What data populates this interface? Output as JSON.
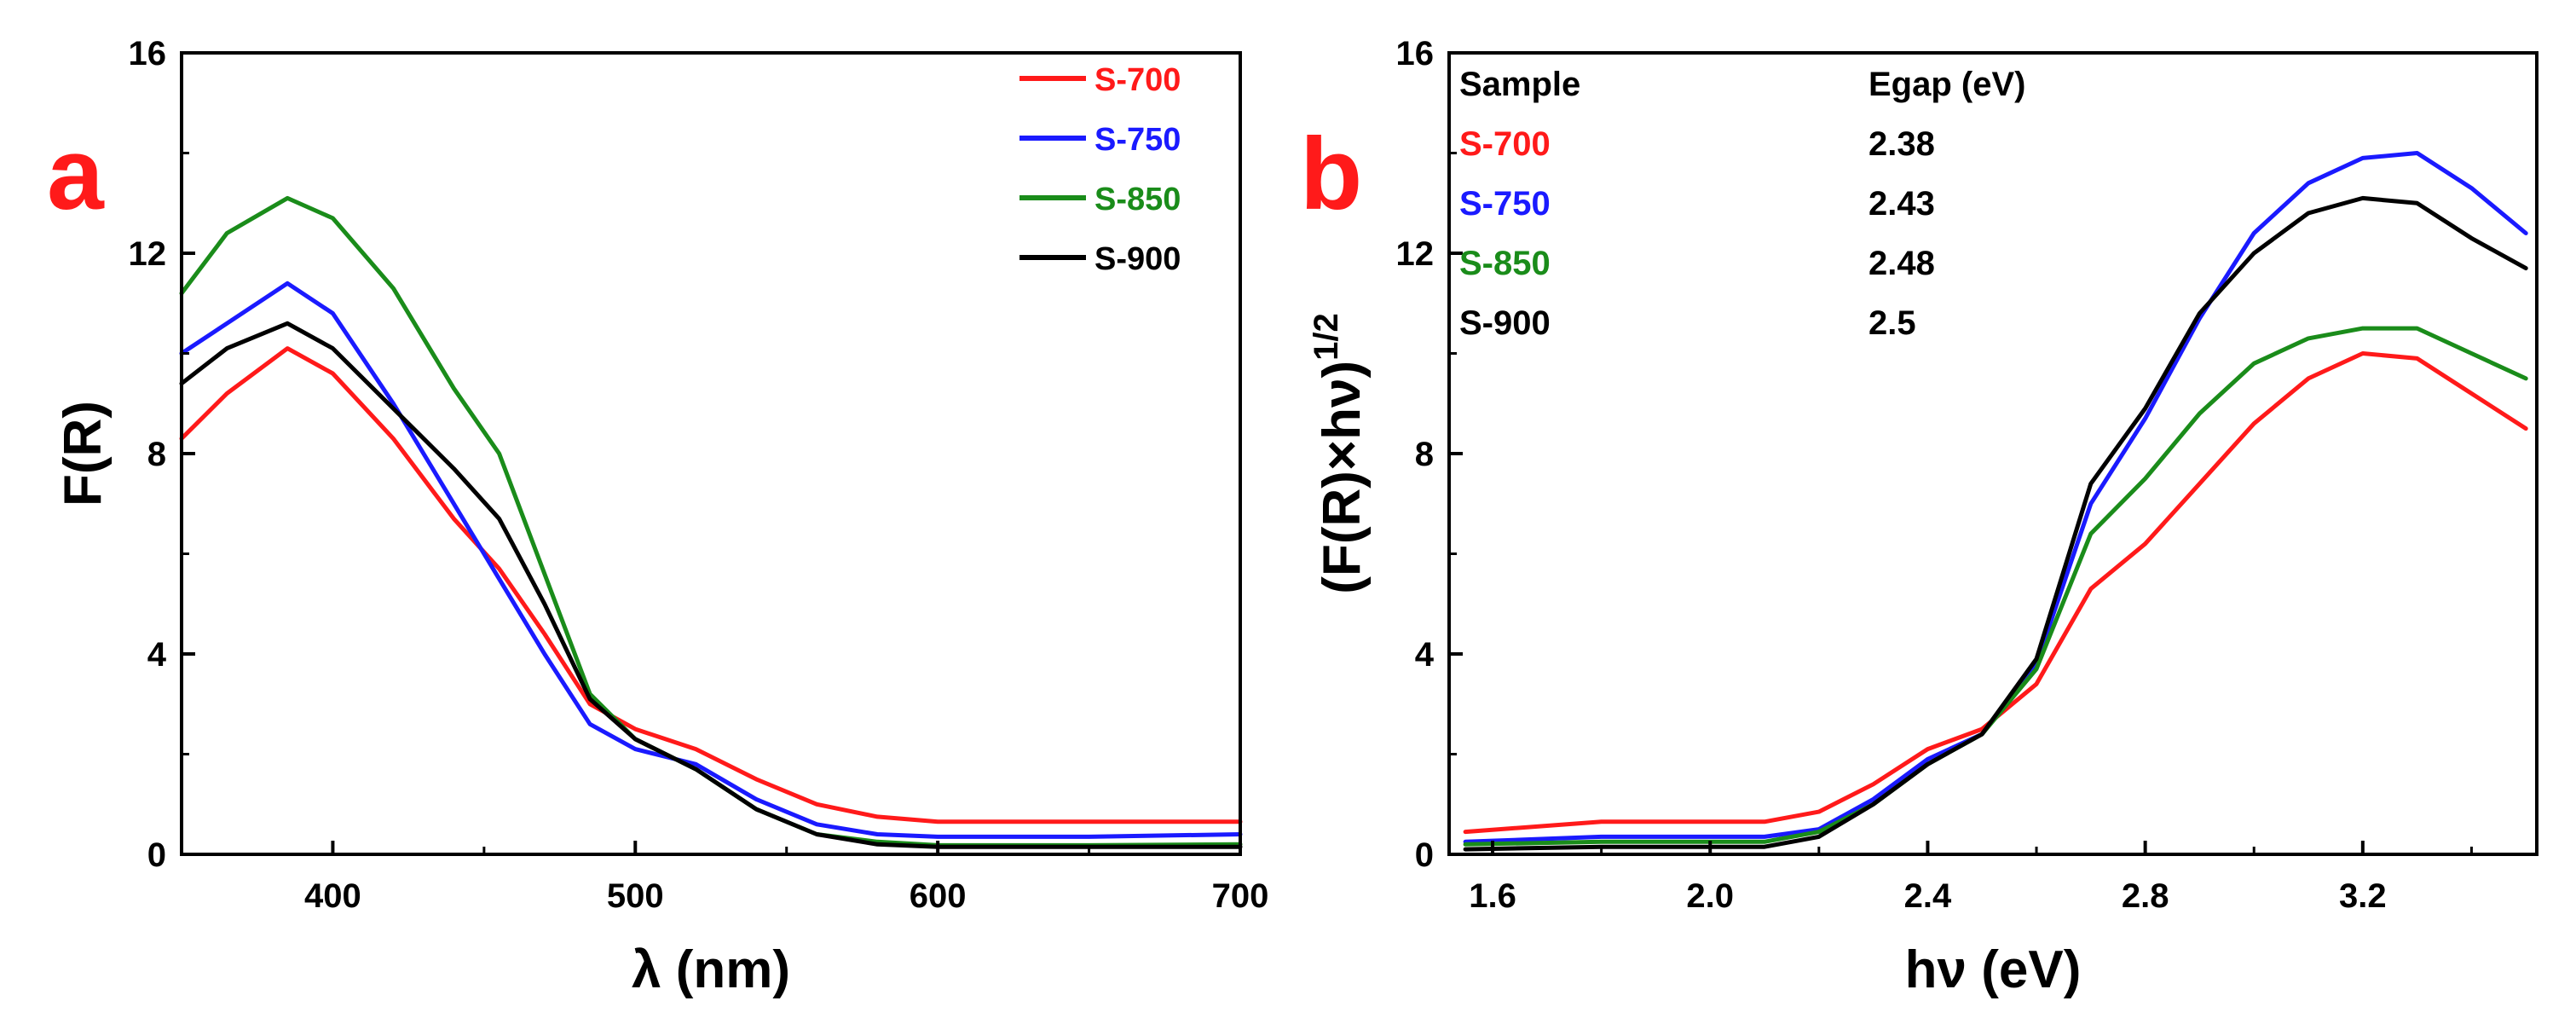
{
  "colors": {
    "S-700": "#ff1a1a",
    "S-750": "#1a1aff",
    "S-850": "#1a8c1a",
    "S-900": "#000000",
    "panel_letter": "#ff1a1a"
  },
  "chart_data": [
    {
      "type": "line",
      "panel_label": "a",
      "title": "",
      "xlabel": "λ (nm)",
      "ylabel": "F(R)",
      "xlim": [
        350,
        700
      ],
      "ylim": [
        0,
        16
      ],
      "xticks": [
        400,
        500,
        600,
        700
      ],
      "yticks": [
        0,
        4,
        8,
        12,
        16
      ],
      "grid": false,
      "legend": {
        "placement": "top-right",
        "entries": [
          "S-700",
          "S-750",
          "S-850",
          "S-900"
        ]
      },
      "series": [
        {
          "name": "S-700",
          "color_key": "S-700",
          "x": [
            350,
            365,
            385,
            400,
            420,
            440,
            455,
            470,
            485,
            500,
            520,
            540,
            560,
            580,
            600,
            650,
            700
          ],
          "y": [
            8.3,
            9.2,
            10.1,
            9.6,
            8.3,
            6.7,
            5.7,
            4.4,
            3.0,
            2.5,
            2.1,
            1.5,
            1.0,
            0.75,
            0.65,
            0.65,
            0.65
          ]
        },
        {
          "name": "S-750",
          "color_key": "S-750",
          "x": [
            350,
            365,
            385,
            400,
            420,
            440,
            455,
            470,
            485,
            500,
            520,
            540,
            560,
            580,
            600,
            650,
            700
          ],
          "y": [
            10.0,
            10.6,
            11.4,
            10.8,
            9.0,
            7.0,
            5.5,
            4.0,
            2.6,
            2.1,
            1.8,
            1.1,
            0.6,
            0.4,
            0.35,
            0.35,
            0.4
          ]
        },
        {
          "name": "S-850",
          "color_key": "S-850",
          "x": [
            350,
            365,
            385,
            400,
            420,
            440,
            455,
            470,
            485,
            500,
            520,
            540,
            560,
            580,
            600,
            650,
            700
          ],
          "y": [
            11.2,
            12.4,
            13.1,
            12.7,
            11.3,
            9.3,
            8.0,
            5.6,
            3.2,
            2.3,
            1.7,
            0.9,
            0.4,
            0.25,
            0.18,
            0.18,
            0.2
          ]
        },
        {
          "name": "S-900",
          "color_key": "S-900",
          "x": [
            350,
            365,
            385,
            400,
            420,
            440,
            455,
            470,
            485,
            500,
            520,
            540,
            560,
            580,
            600,
            650,
            700
          ],
          "y": [
            9.4,
            10.1,
            10.6,
            10.1,
            8.9,
            7.7,
            6.7,
            5.0,
            3.1,
            2.3,
            1.7,
            0.9,
            0.4,
            0.2,
            0.15,
            0.15,
            0.15
          ]
        }
      ]
    },
    {
      "type": "line",
      "panel_label": "b",
      "title": "",
      "xlabel": "hν (eV)",
      "ylabel": "(F(R)×hν)",
      "ylabel_superscript": "1/2",
      "xlim": [
        1.52,
        3.52
      ],
      "ylim": [
        0,
        16
      ],
      "xticks": [
        "1.6",
        "2.0",
        "2.4",
        "2.8",
        "3.2"
      ],
      "yticks": [
        0,
        4,
        8,
        12,
        16
      ],
      "grid": false,
      "table": {
        "headers": [
          "Sample",
          "Egap (eV)"
        ],
        "rows": [
          {
            "sample": "S-700",
            "egap": "2.38"
          },
          {
            "sample": "S-750",
            "egap": "2.43"
          },
          {
            "sample": "S-850",
            "egap": "2.48"
          },
          {
            "sample": "S-900",
            "egap": "2.5"
          }
        ]
      },
      "series": [
        {
          "name": "S-700",
          "color_key": "S-700",
          "x": [
            1.55,
            1.8,
            2.1,
            2.2,
            2.3,
            2.4,
            2.5,
            2.6,
            2.7,
            2.8,
            2.9,
            3.0,
            3.1,
            3.2,
            3.3,
            3.4,
            3.5
          ],
          "y": [
            0.45,
            0.65,
            0.65,
            0.85,
            1.4,
            2.1,
            2.5,
            3.4,
            5.3,
            6.2,
            7.4,
            8.6,
            9.5,
            10.0,
            9.9,
            9.2,
            8.5
          ]
        },
        {
          "name": "S-750",
          "color_key": "S-750",
          "x": [
            1.55,
            1.8,
            2.1,
            2.2,
            2.3,
            2.4,
            2.5,
            2.6,
            2.7,
            2.8,
            2.9,
            3.0,
            3.1,
            3.2,
            3.3,
            3.4,
            3.5
          ],
          "y": [
            0.25,
            0.35,
            0.35,
            0.5,
            1.1,
            1.9,
            2.4,
            3.8,
            7.0,
            8.7,
            10.7,
            12.4,
            13.4,
            13.9,
            14.0,
            13.3,
            12.4
          ]
        },
        {
          "name": "S-850",
          "color_key": "S-850",
          "x": [
            1.55,
            1.8,
            2.1,
            2.2,
            2.3,
            2.4,
            2.5,
            2.6,
            2.7,
            2.8,
            2.9,
            3.0,
            3.1,
            3.2,
            3.3,
            3.4,
            3.5
          ],
          "y": [
            0.2,
            0.25,
            0.25,
            0.45,
            1.0,
            1.8,
            2.4,
            3.7,
            6.4,
            7.5,
            8.8,
            9.8,
            10.3,
            10.5,
            10.5,
            10.0,
            9.5
          ]
        },
        {
          "name": "S-900",
          "color_key": "S-900",
          "x": [
            1.55,
            1.8,
            2.1,
            2.2,
            2.3,
            2.4,
            2.5,
            2.6,
            2.7,
            2.8,
            2.9,
            3.0,
            3.1,
            3.2,
            3.3,
            3.4,
            3.5
          ],
          "y": [
            0.1,
            0.15,
            0.15,
            0.35,
            1.0,
            1.8,
            2.4,
            3.9,
            7.4,
            8.9,
            10.8,
            12.0,
            12.8,
            13.1,
            13.0,
            12.3,
            11.7
          ]
        }
      ]
    }
  ]
}
